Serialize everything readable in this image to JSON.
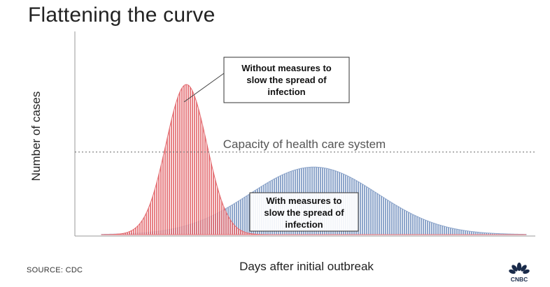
{
  "header": {
    "title": "Flattening the curve"
  },
  "footer": {
    "source": "SOURCE: CDC",
    "logo_name": "CNBC"
  },
  "colors": {
    "without_measures": "#e36a6f",
    "with_measures": "#8ea6cb",
    "capacity_line": "#666666",
    "axis": "#999999"
  },
  "chart_data": {
    "type": "area",
    "title": "Flattening the curve",
    "xlabel": "Days after initial outbreak",
    "ylabel": "Number of cases",
    "x_ticks": [],
    "y_ticks": [],
    "xlim": [
      0,
      100
    ],
    "ylim": [
      0,
      100
    ],
    "grid": false,
    "series": [
      {
        "name": "Without measures to slow the spread of infection",
        "shape": "bell",
        "peak_x": 20,
        "peak_y": 100,
        "spread": 4.8
      },
      {
        "name": "With measures to slow the spread of infection",
        "shape": "bell",
        "peak_x": 50,
        "peak_y": 45,
        "spread": 15
      }
    ],
    "reference_line": {
      "label": "Capacity of health care system",
      "y": 55
    },
    "annotations": [
      {
        "text_lines": [
          "Without measures to",
          "slow the spread of",
          "infection"
        ],
        "series_index": 0
      },
      {
        "text_lines": [
          "With measures to",
          "slow the spread of",
          "infection"
        ],
        "series_index": 1
      }
    ]
  }
}
